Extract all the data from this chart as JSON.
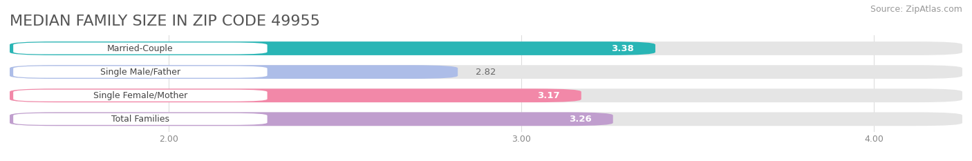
{
  "title": "MEDIAN FAMILY SIZE IN ZIP CODE 49955",
  "source": "Source: ZipAtlas.com",
  "categories": [
    "Married-Couple",
    "Single Male/Father",
    "Single Female/Mother",
    "Total Families"
  ],
  "values": [
    3.38,
    2.82,
    3.17,
    3.26
  ],
  "bar_colors": [
    "#29b5b5",
    "#adbde8",
    "#f288a8",
    "#c09ece"
  ],
  "background_color": "#ffffff",
  "bar_background_color": "#e5e5e5",
  "title_fontsize": 16,
  "source_fontsize": 9,
  "bar_label_fontsize": 9.5,
  "category_fontsize": 9,
  "bar_height": 0.58,
  "xlim_min": 1.55,
  "xlim_max": 4.25,
  "xticks": [
    2.0,
    3.0,
    4.0
  ],
  "xtick_labels": [
    "2.00",
    "3.00",
    "4.00"
  ],
  "value_inside_threshold": 3.1,
  "value_label_colors_inside": "#ffffff",
  "value_label_colors_outside": "#666666"
}
